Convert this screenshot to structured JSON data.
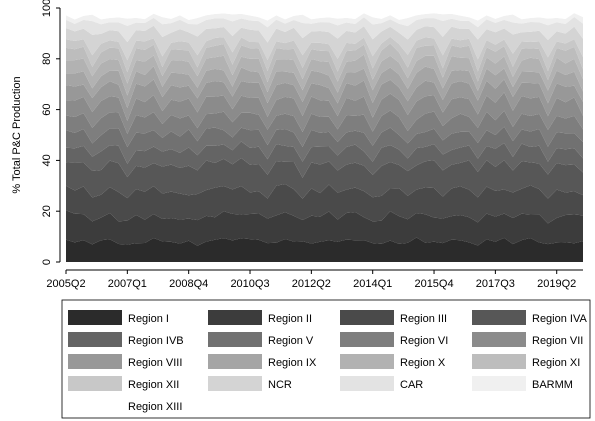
{
  "chart_data": {
    "type": "area",
    "stacked": true,
    "ylabel": "% Total P&C Production",
    "xlabel": "",
    "ylim": [
      0,
      100
    ],
    "yticks": [
      0,
      20,
      40,
      60,
      80,
      100
    ],
    "xticks": [
      "2005Q2",
      "2007Q1",
      "2008Q4",
      "2010Q3",
      "2012Q2",
      "2014Q1",
      "2015Q4",
      "2017Q3",
      "2019Q2"
    ],
    "grid": false,
    "legend_position": "bottom",
    "x_range": [
      "2005Q2",
      "2020Q1"
    ],
    "pattern_note": "",
    "band_means": [
      8.5,
      10.5,
      10.5,
      10.5,
      6.5,
      6.5,
      6.5,
      6.5,
      5.5,
      5,
      5,
      4.5,
      3,
      4.5,
      3.5,
      1.8,
      0.7
    ],
    "trough_quarter": 1,
    "series": [
      {
        "name": "Region I",
        "color": "#2b2b2b"
      },
      {
        "name": "Region II",
        "color": "#3c3c3c"
      },
      {
        "name": "Region III",
        "color": "#4a4a4a"
      },
      {
        "name": "Region IVA",
        "color": "#575757"
      },
      {
        "name": "Region IVB",
        "color": "#646464"
      },
      {
        "name": "Region V",
        "color": "#717171"
      },
      {
        "name": "Region VI",
        "color": "#7e7e7e"
      },
      {
        "name": "Region VII",
        "color": "#8b8b8b"
      },
      {
        "name": "Region VIII",
        "color": "#989898"
      },
      {
        "name": "Region IX",
        "color": "#a5a5a5"
      },
      {
        "name": "Region X",
        "color": "#b2b2b2"
      },
      {
        "name": "Region XI",
        "color": "#bdbdbd"
      },
      {
        "name": "Region XII",
        "color": "#c8c8c8"
      },
      {
        "name": "NCR",
        "color": "#d4d4d4"
      },
      {
        "name": "CAR",
        "color": "#e3e3e3"
      },
      {
        "name": "BARMM",
        "color": "#f0f0f0"
      },
      {
        "name": "Region XIII",
        "color": "#ffffff"
      }
    ]
  }
}
